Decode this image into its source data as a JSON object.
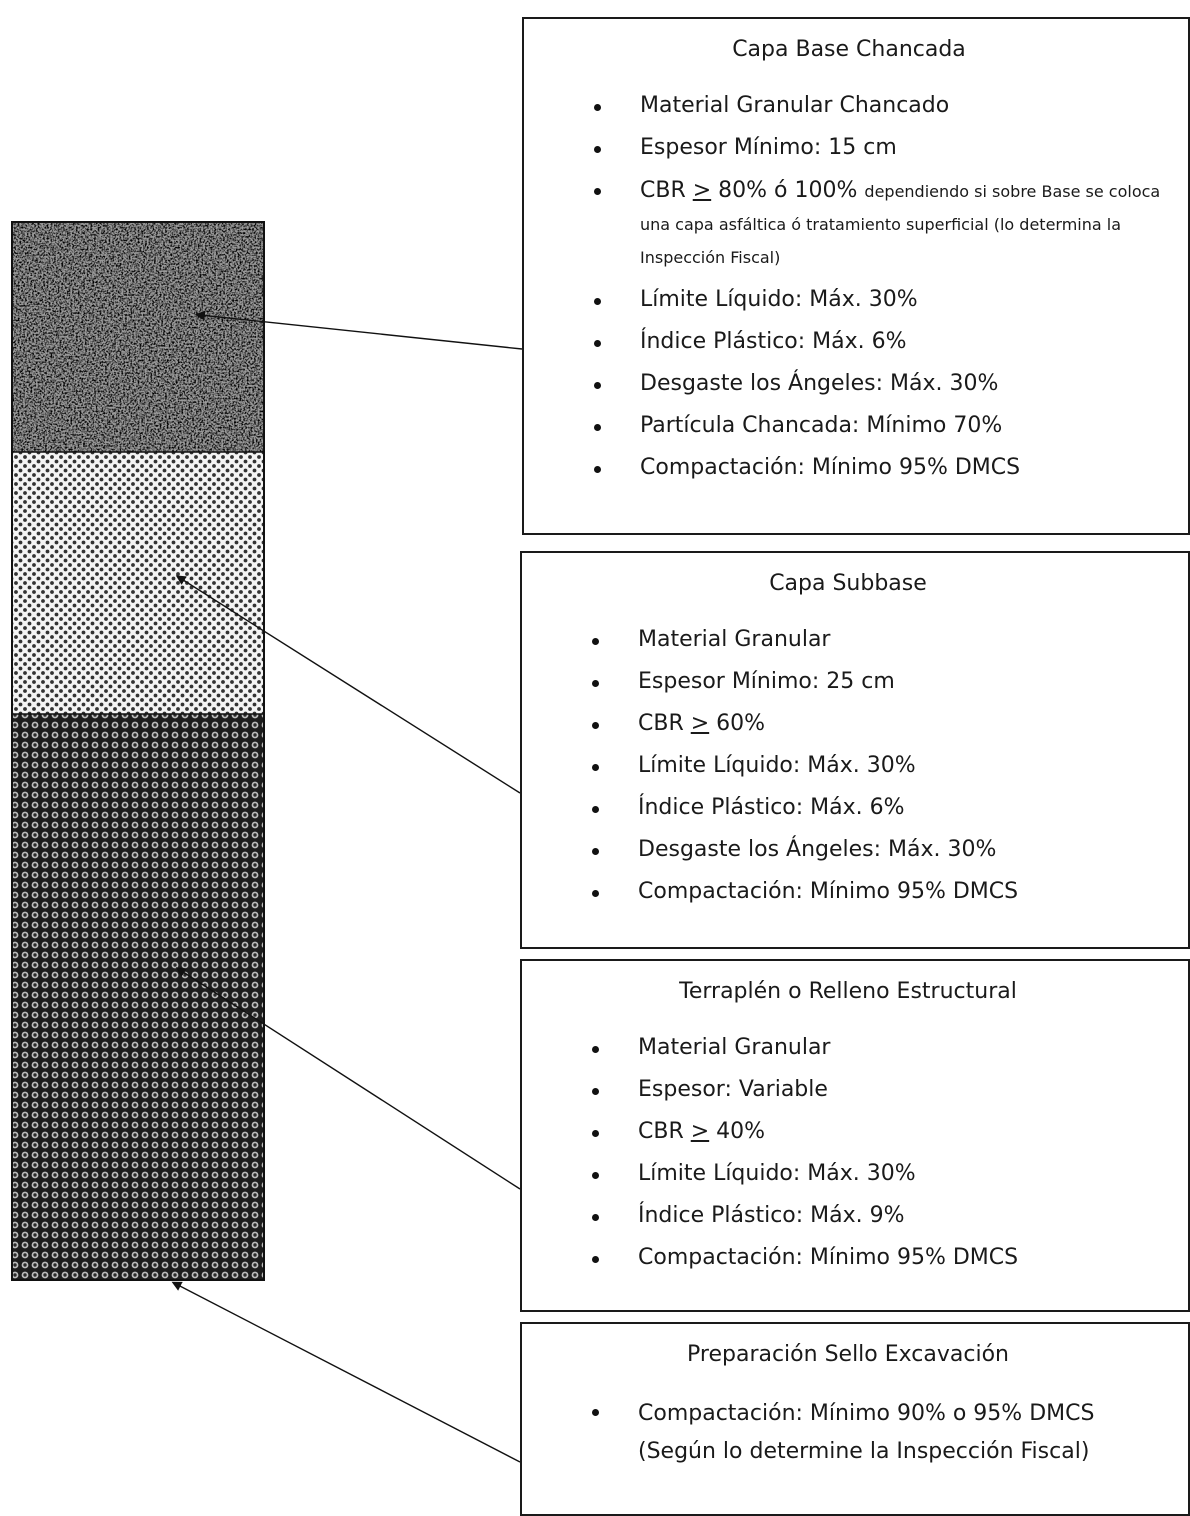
{
  "boxes": {
    "base": {
      "title": "Capa Base Chancada",
      "items": [
        "Material Granular Chancado",
        "Espesor Mínimo: 15 cm",
        "Límite Líquido: Máx. 30%",
        "Índice Plástico: Máx. 6%",
        "Desgaste los Ángeles: Máx. 30%",
        "Partícula Chancada: Mínimo 70%",
        "Compactación: Mínimo 95% DMCS"
      ],
      "cbr": {
        "prefix": "CBR ",
        "symbol": ">",
        "value": " 80% ó 100%",
        "note": "dependiendo si sobre Base se coloca una capa asfáltica ó  tratamiento superficial (lo determina la Inspección Fiscal)"
      }
    },
    "subbase": {
      "title": "Capa Subbase",
      "items": [
        "Material Granular",
        "Espesor Mínimo: 25 cm",
        "Límite Líquido: Máx. 30%",
        "Índice Plástico: Máx. 6%",
        "Desgaste los Ángeles: Máx. 30%",
        "Compactación: Mínimo 95% DMCS"
      ],
      "cbr": {
        "prefix": "CBR ",
        "symbol": ">",
        "value": " 60%"
      }
    },
    "terraplen": {
      "title": "Terraplén o Relleno Estructural",
      "items": [
        "Material Granular",
        "Espesor: Variable",
        "Límite Líquido: Máx. 30%",
        "Índice Plástico: Máx. 9%",
        "Compactación: Mínimo 95% DMCS"
      ],
      "cbr": {
        "prefix": "CBR ",
        "symbol": ">",
        "value": " 40%"
      }
    },
    "sello": {
      "title": "Preparación Sello Excavación",
      "items": [
        "Compactación: Mínimo 90% o 95% DMCS (Según lo determine la Inspección Fiscal)"
      ]
    }
  }
}
